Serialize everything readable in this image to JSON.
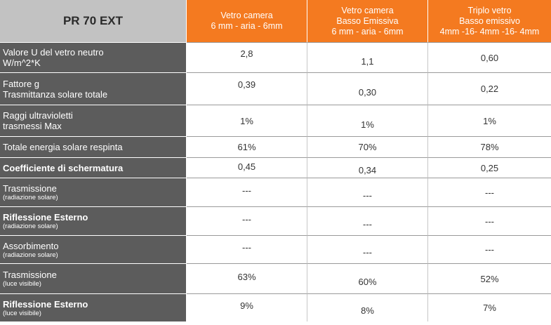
{
  "header": {
    "title": "PR 70 EXT",
    "columns": [
      {
        "lines": [
          "Vetro camera",
          "6 mm - aria - 6mm"
        ]
      },
      {
        "lines": [
          "Vetro camera",
          "Basso Emissiva",
          "6 mm - aria - 6mm"
        ]
      },
      {
        "lines": [
          "Triplo vetro",
          "Basso emissivo",
          "4mm -16- 4mm -16- 4mm"
        ]
      }
    ]
  },
  "rows": [
    {
      "label": [
        "Valore U del vetro neutro",
        "W/m^2*K"
      ],
      "sub": "",
      "values": [
        "2,8",
        "1,1",
        "0,60"
      ]
    },
    {
      "label": [
        "Fattore g",
        "Trasmittanza solare totale"
      ],
      "sub": "",
      "values": [
        "0,39",
        "0,30",
        "0,22"
      ]
    },
    {
      "label": [
        "Raggi ultravioletti",
        "trasmessi Max"
      ],
      "sub": "",
      "values": [
        "1%",
        "1%",
        "1%"
      ]
    },
    {
      "label": [
        "Totale energia solare respinta"
      ],
      "sub": "",
      "values": [
        "61%",
        "70%",
        "78%"
      ]
    },
    {
      "label": [
        "Coefficiente di schermatura"
      ],
      "sub": "",
      "values": [
        "0,45",
        "0,34",
        "0,25"
      ]
    },
    {
      "label": [
        "Trasmissione"
      ],
      "sub": "(radiazione solare)",
      "values": [
        "---",
        "---",
        "---"
      ]
    },
    {
      "label": [
        "Riflessione Esterno"
      ],
      "sub": "(radiazione solare)",
      "values": [
        "---",
        "---",
        "---"
      ]
    },
    {
      "label": [
        "Assorbimento"
      ],
      "sub": "(radiazione solare)",
      "values": [
        "---",
        "---",
        "---"
      ]
    },
    {
      "label": [
        "Trasmissione"
      ],
      "sub": "(luce visibile)",
      "values": [
        "63%",
        "60%",
        "52%"
      ]
    },
    {
      "label": [
        "Riflessione Esterno"
      ],
      "sub": "(luce visibile)",
      "values": [
        "9%",
        "8%",
        "7%"
      ]
    }
  ]
}
